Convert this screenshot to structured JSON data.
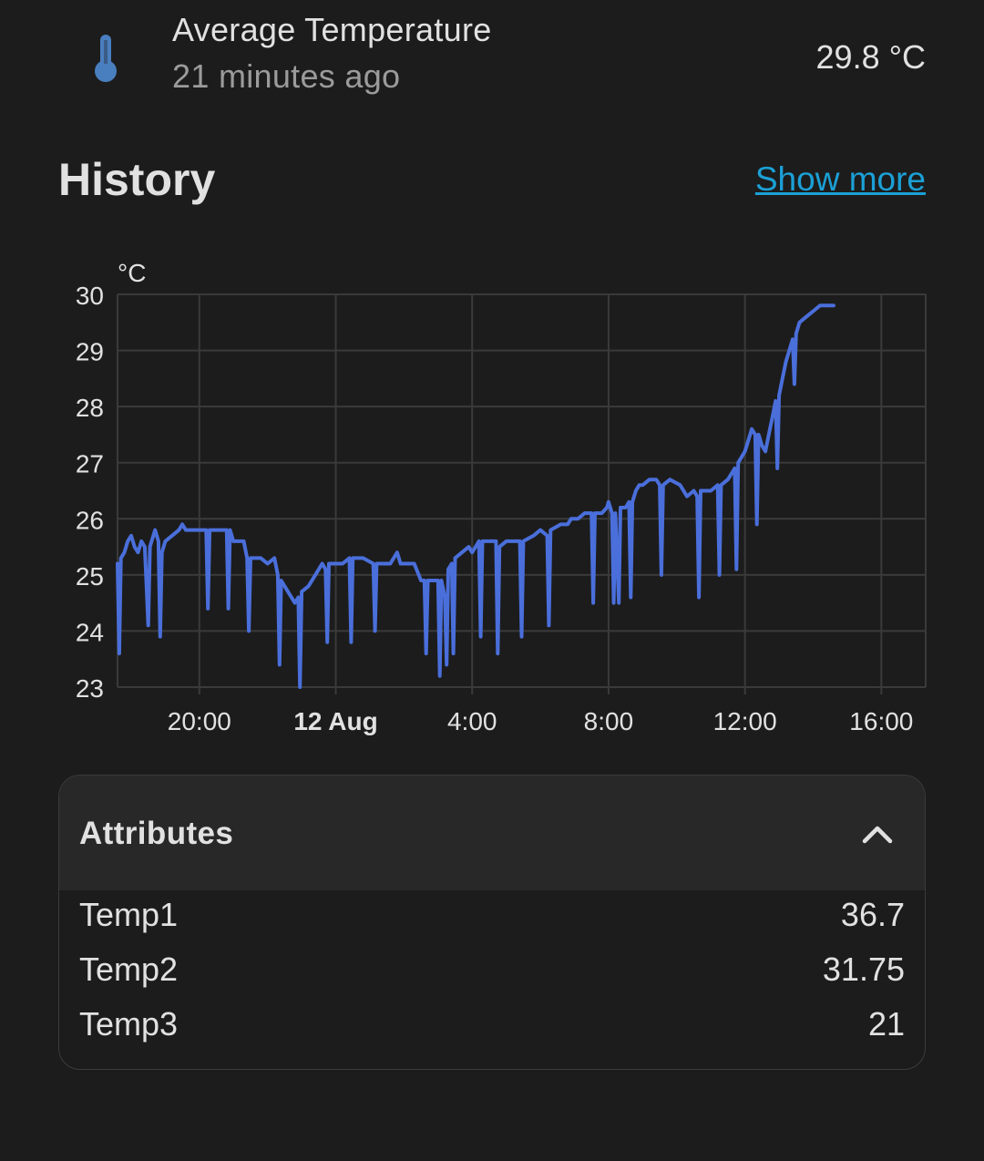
{
  "entity": {
    "name": "Average Temperature",
    "last_changed": "21 minutes ago",
    "state": "29.8 °C",
    "icon": "thermometer-icon"
  },
  "history": {
    "title": "History",
    "show_more_label": "Show more"
  },
  "chart_data": {
    "type": "line",
    "ylabel": "°C",
    "ylim": [
      23,
      30
    ],
    "yticks": [
      "30",
      "29",
      "28",
      "27",
      "26",
      "25",
      "24",
      "23"
    ],
    "xlim": [
      17.6,
      41.3
    ],
    "xticks": [
      {
        "x": 20,
        "label": "20:00",
        "bold": false
      },
      {
        "x": 24,
        "label": "12 Aug",
        "bold": true
      },
      {
        "x": 28,
        "label": "4:00",
        "bold": false
      },
      {
        "x": 32,
        "label": "8:00",
        "bold": false
      },
      {
        "x": 36,
        "label": "12:00",
        "bold": false
      },
      {
        "x": 40,
        "label": "16:00",
        "bold": false
      }
    ],
    "grid": true,
    "color": "#4a6fdb",
    "series": [
      {
        "points": [
          [
            17.6,
            25.2
          ],
          [
            17.65,
            23.6
          ],
          [
            17.7,
            25.3
          ],
          [
            17.8,
            25.4
          ],
          [
            17.9,
            25.6
          ],
          [
            18.0,
            25.7
          ],
          [
            18.1,
            25.5
          ],
          [
            18.2,
            25.4
          ],
          [
            18.3,
            25.6
          ],
          [
            18.4,
            25.5
          ],
          [
            18.5,
            24.1
          ],
          [
            18.55,
            25.5
          ],
          [
            18.6,
            25.6
          ],
          [
            18.7,
            25.8
          ],
          [
            18.8,
            25.6
          ],
          [
            18.85,
            23.9
          ],
          [
            18.9,
            25.4
          ],
          [
            19.0,
            25.6
          ],
          [
            19.2,
            25.7
          ],
          [
            19.4,
            25.8
          ],
          [
            19.5,
            25.9
          ],
          [
            19.6,
            25.8
          ],
          [
            20.0,
            25.8
          ],
          [
            20.2,
            25.8
          ],
          [
            20.25,
            24.4
          ],
          [
            20.3,
            25.8
          ],
          [
            20.6,
            25.8
          ],
          [
            20.8,
            25.8
          ],
          [
            20.85,
            24.4
          ],
          [
            20.9,
            25.8
          ],
          [
            21.0,
            25.6
          ],
          [
            21.3,
            25.6
          ],
          [
            21.4,
            25.3
          ],
          [
            21.45,
            24.0
          ],
          [
            21.5,
            25.3
          ],
          [
            21.8,
            25.3
          ],
          [
            22.0,
            25.2
          ],
          [
            22.2,
            25.3
          ],
          [
            22.3,
            25.0
          ],
          [
            22.35,
            23.4
          ],
          [
            22.4,
            24.9
          ],
          [
            22.6,
            24.7
          ],
          [
            22.8,
            24.5
          ],
          [
            22.9,
            24.6
          ],
          [
            22.95,
            23.0
          ],
          [
            23.0,
            24.7
          ],
          [
            23.2,
            24.8
          ],
          [
            23.4,
            25.0
          ],
          [
            23.6,
            25.2
          ],
          [
            23.7,
            25.1
          ],
          [
            23.75,
            23.8
          ],
          [
            23.8,
            25.2
          ],
          [
            24.2,
            25.2
          ],
          [
            24.4,
            25.3
          ],
          [
            24.45,
            23.8
          ],
          [
            24.5,
            25.3
          ],
          [
            24.8,
            25.3
          ],
          [
            25.1,
            25.2
          ],
          [
            25.15,
            24.0
          ],
          [
            25.2,
            25.2
          ],
          [
            25.6,
            25.2
          ],
          [
            25.8,
            25.4
          ],
          [
            25.9,
            25.2
          ],
          [
            26.3,
            25.2
          ],
          [
            26.5,
            24.9
          ],
          [
            26.6,
            24.9
          ],
          [
            26.65,
            23.6
          ],
          [
            26.7,
            24.9
          ],
          [
            27.0,
            24.9
          ],
          [
            27.05,
            23.2
          ],
          [
            27.1,
            24.9
          ],
          [
            27.2,
            24.6
          ],
          [
            27.25,
            23.4
          ],
          [
            27.3,
            25.1
          ],
          [
            27.4,
            25.2
          ],
          [
            27.45,
            23.6
          ],
          [
            27.5,
            25.3
          ],
          [
            27.7,
            25.4
          ],
          [
            27.9,
            25.5
          ],
          [
            28.0,
            25.4
          ],
          [
            28.1,
            25.5
          ],
          [
            28.2,
            25.6
          ],
          [
            28.25,
            23.9
          ],
          [
            28.3,
            25.6
          ],
          [
            28.7,
            25.6
          ],
          [
            28.75,
            23.6
          ],
          [
            28.8,
            25.5
          ],
          [
            29.0,
            25.6
          ],
          [
            29.4,
            25.6
          ],
          [
            29.45,
            23.9
          ],
          [
            29.5,
            25.6
          ],
          [
            29.8,
            25.7
          ],
          [
            30.0,
            25.8
          ],
          [
            30.2,
            25.7
          ],
          [
            30.25,
            24.1
          ],
          [
            30.3,
            25.8
          ],
          [
            30.6,
            25.9
          ],
          [
            30.8,
            25.9
          ],
          [
            30.9,
            26.0
          ],
          [
            31.1,
            26.0
          ],
          [
            31.3,
            26.1
          ],
          [
            31.5,
            26.1
          ],
          [
            31.55,
            24.5
          ],
          [
            31.6,
            26.1
          ],
          [
            31.8,
            26.1
          ],
          [
            31.95,
            26.2
          ],
          [
            32.0,
            26.3
          ],
          [
            32.1,
            26.1
          ],
          [
            32.15,
            24.5
          ],
          [
            32.2,
            26.1
          ],
          [
            32.3,
            24.5
          ],
          [
            32.35,
            26.2
          ],
          [
            32.5,
            26.2
          ],
          [
            32.6,
            26.3
          ],
          [
            32.65,
            24.6
          ],
          [
            32.7,
            26.3
          ],
          [
            32.8,
            26.5
          ],
          [
            32.9,
            26.6
          ],
          [
            33.0,
            26.6
          ],
          [
            33.2,
            26.7
          ],
          [
            33.4,
            26.7
          ],
          [
            33.5,
            26.6
          ],
          [
            33.55,
            25.0
          ],
          [
            33.6,
            26.6
          ],
          [
            33.8,
            26.7
          ],
          [
            34.1,
            26.6
          ],
          [
            34.3,
            26.4
          ],
          [
            34.5,
            26.5
          ],
          [
            34.6,
            26.4
          ],
          [
            34.65,
            24.6
          ],
          [
            34.7,
            26.5
          ],
          [
            35.0,
            26.5
          ],
          [
            35.2,
            26.6
          ],
          [
            35.25,
            25.0
          ],
          [
            35.3,
            26.6
          ],
          [
            35.5,
            26.7
          ],
          [
            35.6,
            26.8
          ],
          [
            35.7,
            26.9
          ],
          [
            35.75,
            25.1
          ],
          [
            35.8,
            27.0
          ],
          [
            35.9,
            27.1
          ],
          [
            36.0,
            27.2
          ],
          [
            36.1,
            27.4
          ],
          [
            36.2,
            27.6
          ],
          [
            36.3,
            27.5
          ],
          [
            36.35,
            25.9
          ],
          [
            36.4,
            27.5
          ],
          [
            36.5,
            27.3
          ],
          [
            36.6,
            27.2
          ],
          [
            36.7,
            27.5
          ],
          [
            36.8,
            27.8
          ],
          [
            36.9,
            28.1
          ],
          [
            36.95,
            26.9
          ],
          [
            37.0,
            28.2
          ],
          [
            37.1,
            28.5
          ],
          [
            37.2,
            28.8
          ],
          [
            37.3,
            29.0
          ],
          [
            37.4,
            29.2
          ],
          [
            37.45,
            28.4
          ],
          [
            37.5,
            29.3
          ],
          [
            37.6,
            29.5
          ],
          [
            37.8,
            29.6
          ],
          [
            38.0,
            29.7
          ],
          [
            38.2,
            29.8
          ],
          [
            38.6,
            29.8
          ]
        ]
      }
    ]
  },
  "attributes": {
    "title": "Attributes",
    "rows": [
      {
        "key": "Temp1",
        "value": "36.7"
      },
      {
        "key": "Temp2",
        "value": "31.75"
      },
      {
        "key": "Temp3",
        "value": "21"
      }
    ]
  }
}
